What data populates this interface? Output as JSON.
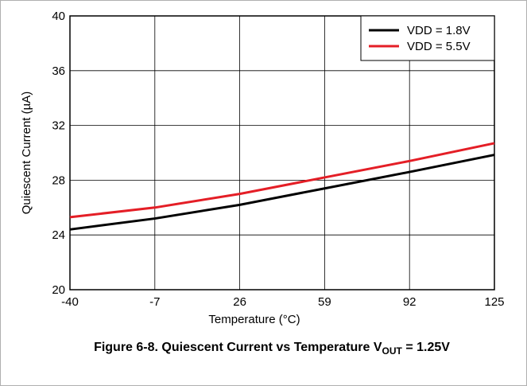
{
  "chart_data": {
    "type": "line",
    "title_parts": [
      "Figure 6-8. Quiescent Current vs Temperature V",
      "OUT",
      " = 1.25V"
    ],
    "xlabel": "Temperature (°C)",
    "ylabel": "Quiescent Current (µA)",
    "x": [
      -40,
      -7,
      26,
      59,
      92,
      125
    ],
    "series": [
      {
        "name": "VDD = 1.8V",
        "color": "#000000",
        "values": [
          24.4,
          25.2,
          26.2,
          27.4,
          28.6,
          29.85
        ]
      },
      {
        "name": "VDD = 5.5V",
        "color": "#e41e26",
        "values": [
          25.3,
          26.0,
          27.0,
          28.2,
          29.4,
          30.7
        ]
      }
    ],
    "xlim": [
      -40,
      125
    ],
    "xticks": [
      -40,
      -7,
      26,
      59,
      92,
      125
    ],
    "ylim": [
      20,
      40
    ],
    "yticks": [
      20,
      24,
      28,
      32,
      36,
      40
    ],
    "grid": true,
    "legend": "upper right"
  }
}
